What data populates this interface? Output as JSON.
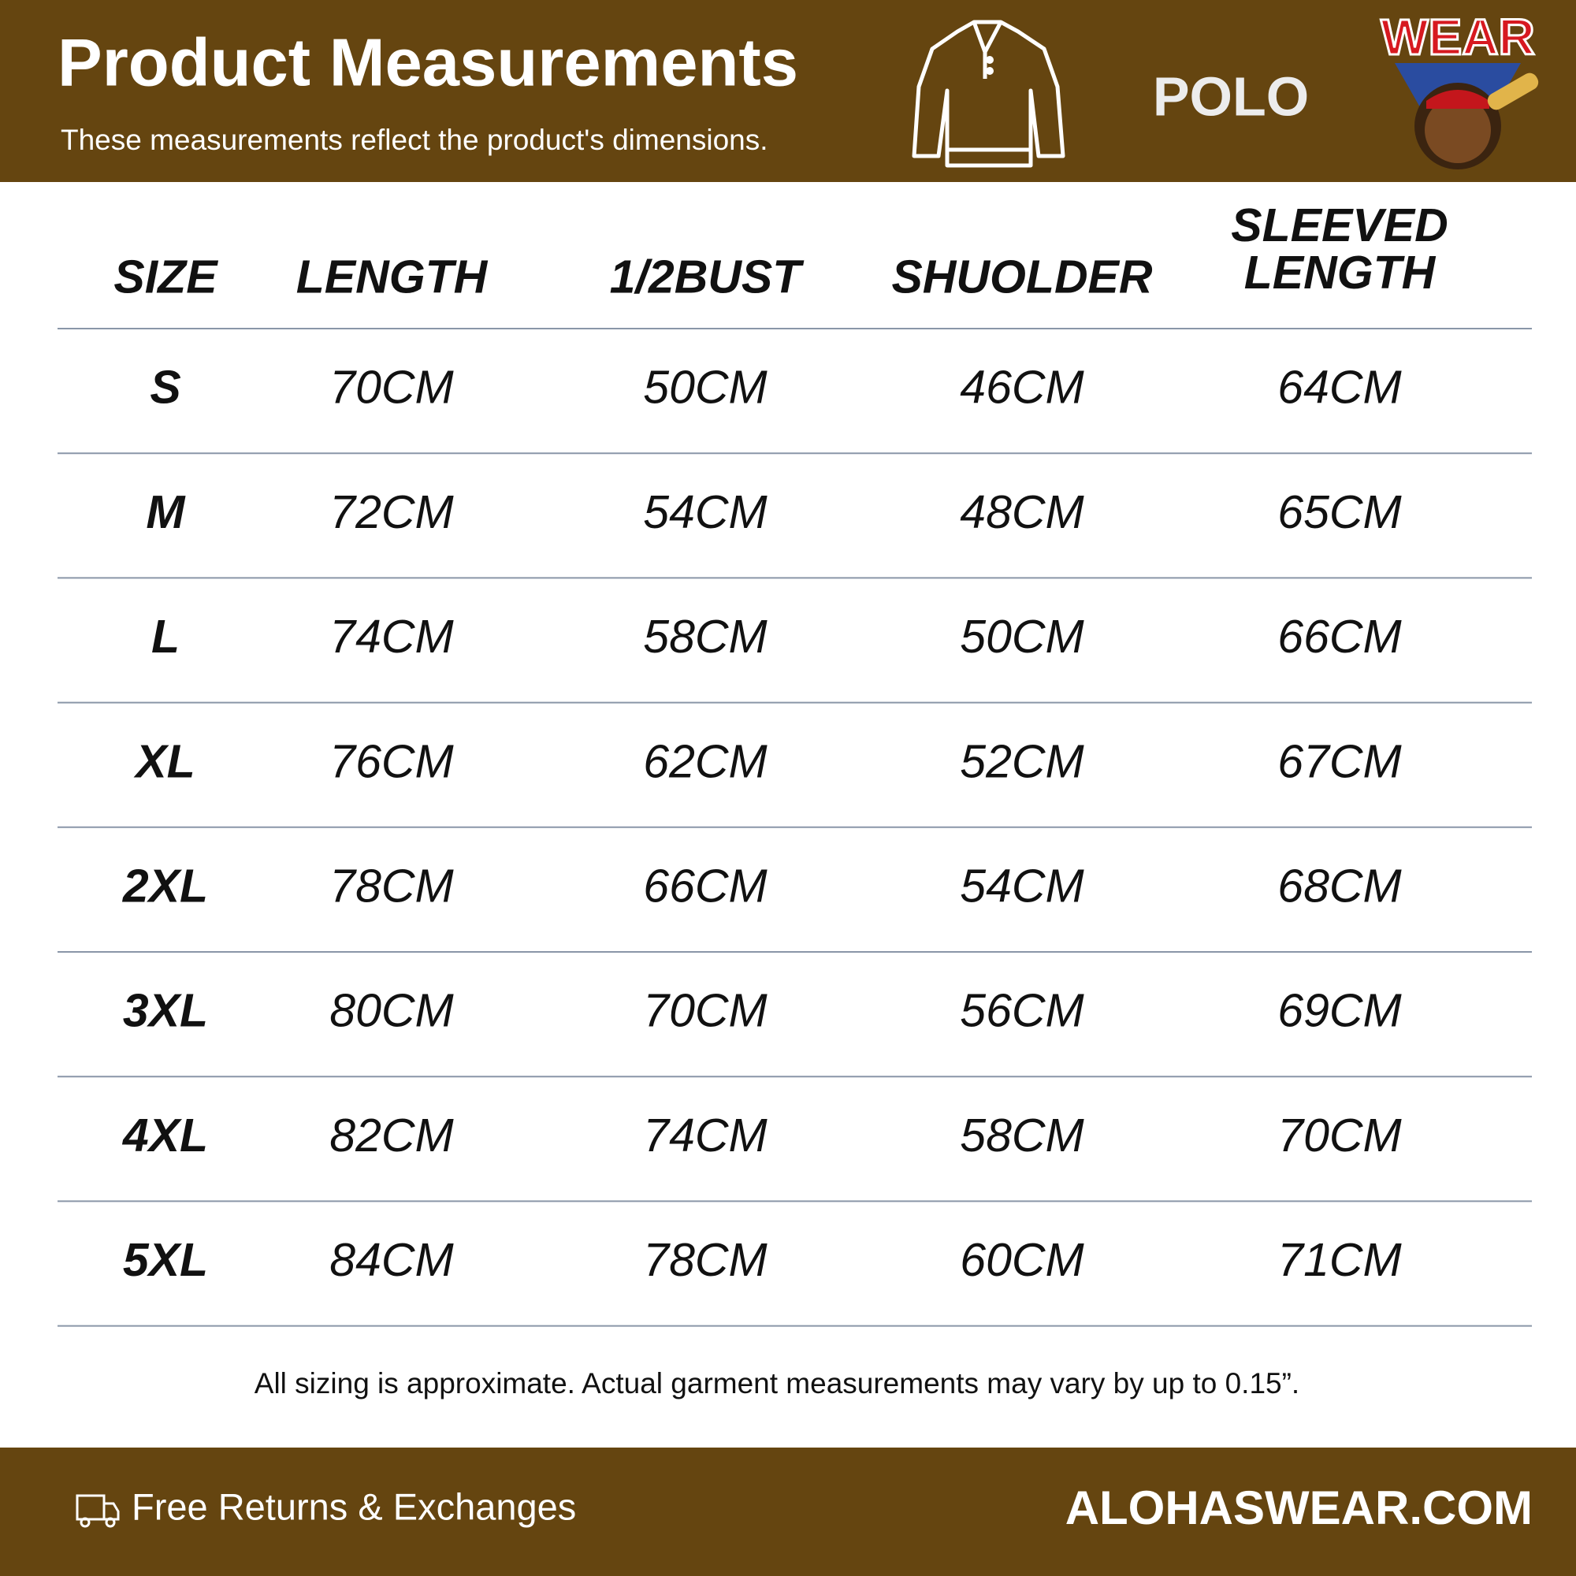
{
  "header": {
    "title": "Product Measurements",
    "subtitle": "These measurements reflect the product's dimensions.",
    "product": "POLO",
    "logo": "WEAR"
  },
  "table": {
    "columns": [
      "SIZE",
      "LENGTH",
      "1/2BUST",
      "SHUOLDER",
      "SLEEVED LENGTH"
    ],
    "rows": [
      [
        "S",
        "70CM",
        "50CM",
        "46CM",
        "64CM"
      ],
      [
        "M",
        "72CM",
        "54CM",
        "48CM",
        "65CM"
      ],
      [
        "L",
        "74CM",
        "58CM",
        "50CM",
        "66CM"
      ],
      [
        "XL",
        "76CM",
        "62CM",
        "52CM",
        "67CM"
      ],
      [
        "2XL",
        "78CM",
        "66CM",
        "54CM",
        "68CM"
      ],
      [
        "3XL",
        "80CM",
        "70CM",
        "56CM",
        "69CM"
      ],
      [
        "4XL",
        "82CM",
        "74CM",
        "58CM",
        "70CM"
      ],
      [
        "5XL",
        "84CM",
        "78CM",
        "60CM",
        "71CM"
      ]
    ]
  },
  "footer": {
    "note": "All sizing is approximate. Actual garment measurements may vary by up to 0.15”.",
    "returns": "Free Returns & Exchanges",
    "site": "ALOHASWEAR.COM"
  }
}
